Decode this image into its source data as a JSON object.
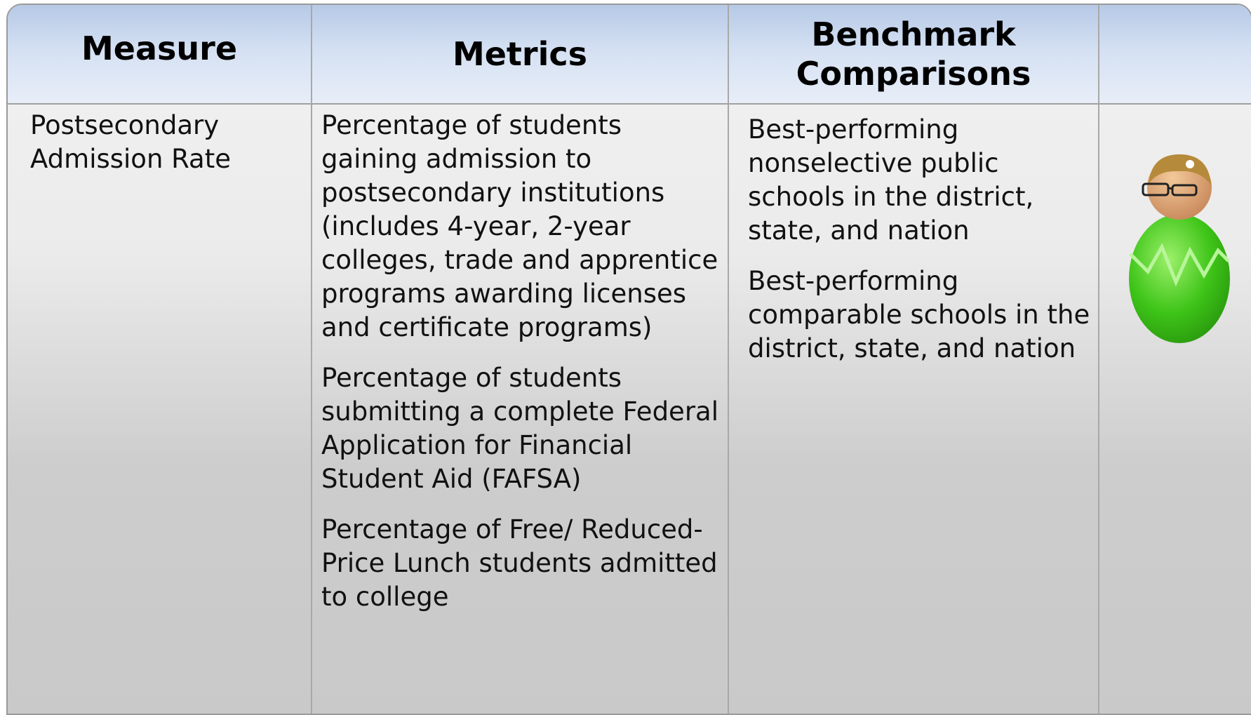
{
  "table": {
    "headers": [
      "Measure",
      "Metrics",
      "Benchmark Comparisons"
    ],
    "rows": [
      [
        "Postsecondary Admission Rate",
        [
          "Percentage of students gaining admission to postsecondary institutions (includes 4-year, 2-year colleges, trade and apprentice programs awarding licenses and certificate programs)",
          "Percentage of students submitting a complete Federal Application for Financial Student Aid (FAFSA)",
          "Percentage of Free/ Reduced-Price Lunch students admitted to college"
        ],
        [
          "Best-performing nonselective public schools in the district, state, and nation",
          "Best-performing comparable schools in the district, state, and nation"
        ]
      ]
    ]
  }
}
